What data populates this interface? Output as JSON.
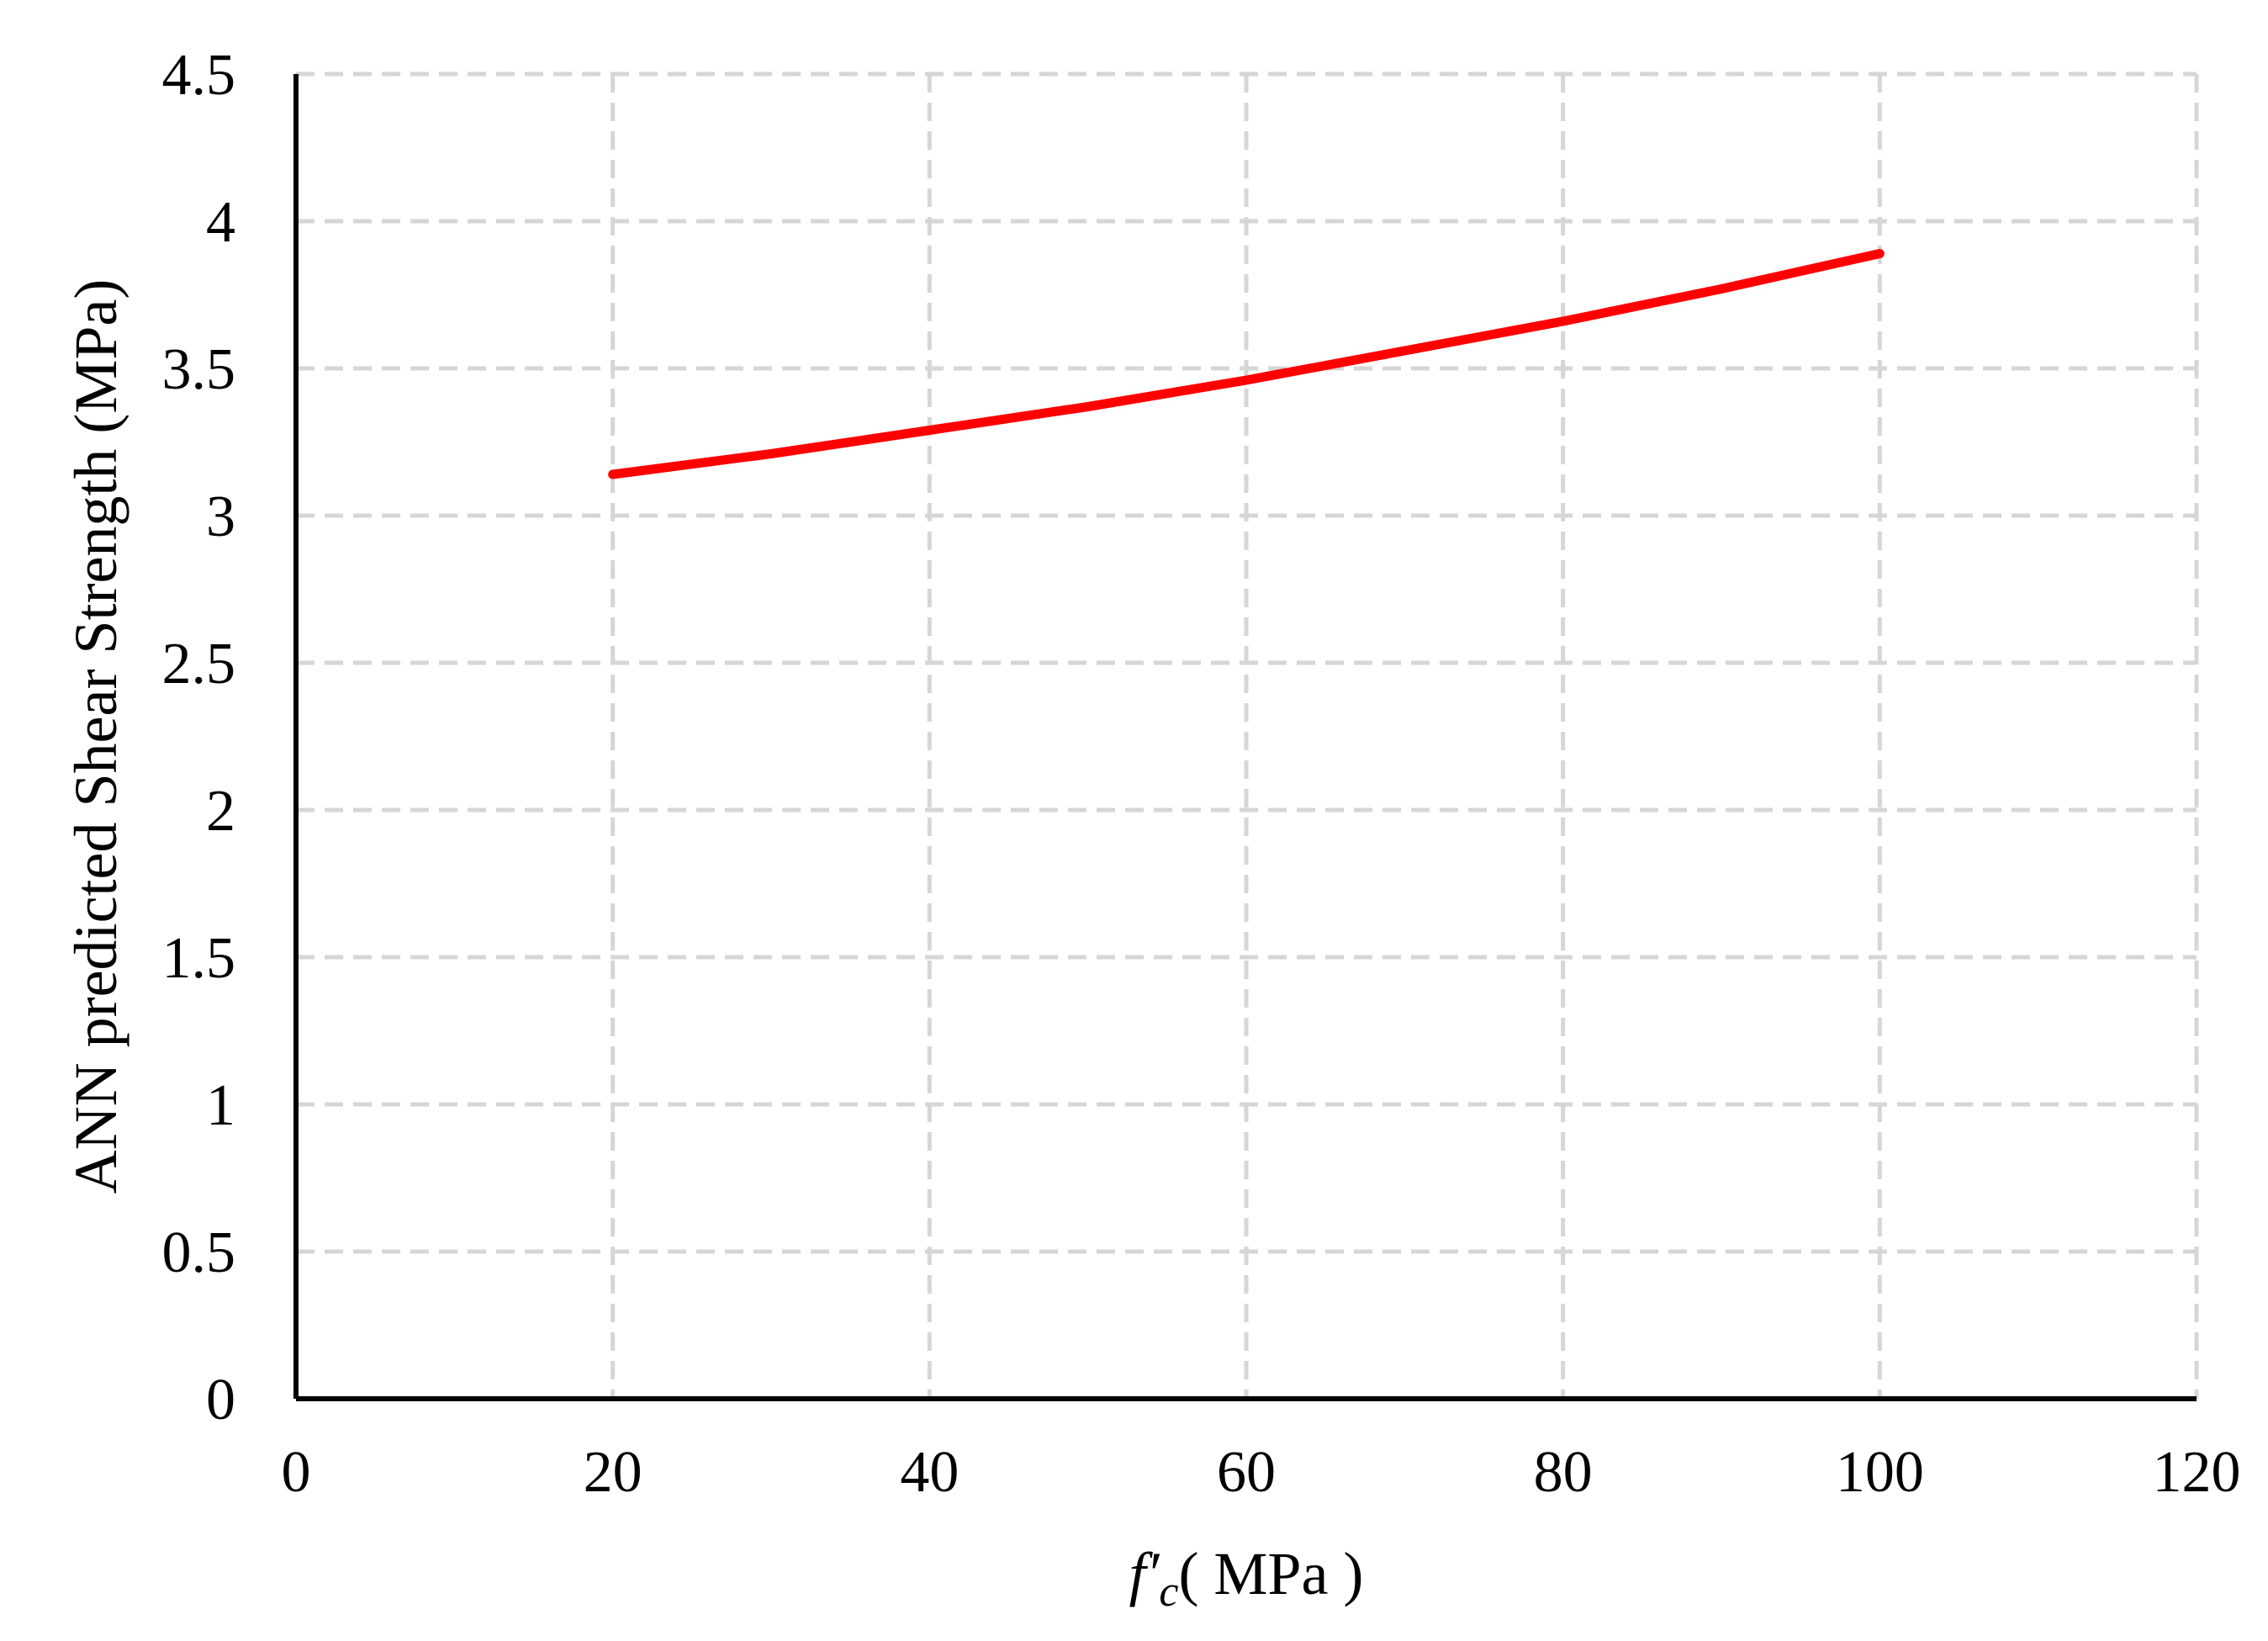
{
  "chart_data": {
    "type": "line",
    "title": "",
    "xlabel": {
      "symbol": "f′",
      "subscript": "c",
      "unit": "( MPa )"
    },
    "ylabel": "ANN predicted Shear Strength (MPa)",
    "xlim": [
      0,
      120
    ],
    "ylim": [
      0,
      4.5
    ],
    "xticks": [
      "0",
      "20",
      "40",
      "60",
      "80",
      "100",
      "120"
    ],
    "yticks": [
      "0",
      "0.5",
      "1",
      "1.5",
      "2",
      "2.5",
      "3",
      "3.5",
      "4",
      "4.5"
    ],
    "grid": true,
    "legend": "none",
    "series": [
      {
        "color": "#ff0000",
        "x": [
          20,
          30,
          40,
          50,
          60,
          70,
          80,
          90,
          100
        ],
        "y": [
          3.14,
          3.21,
          3.29,
          3.37,
          3.46,
          3.56,
          3.66,
          3.77,
          3.89
        ]
      }
    ]
  }
}
